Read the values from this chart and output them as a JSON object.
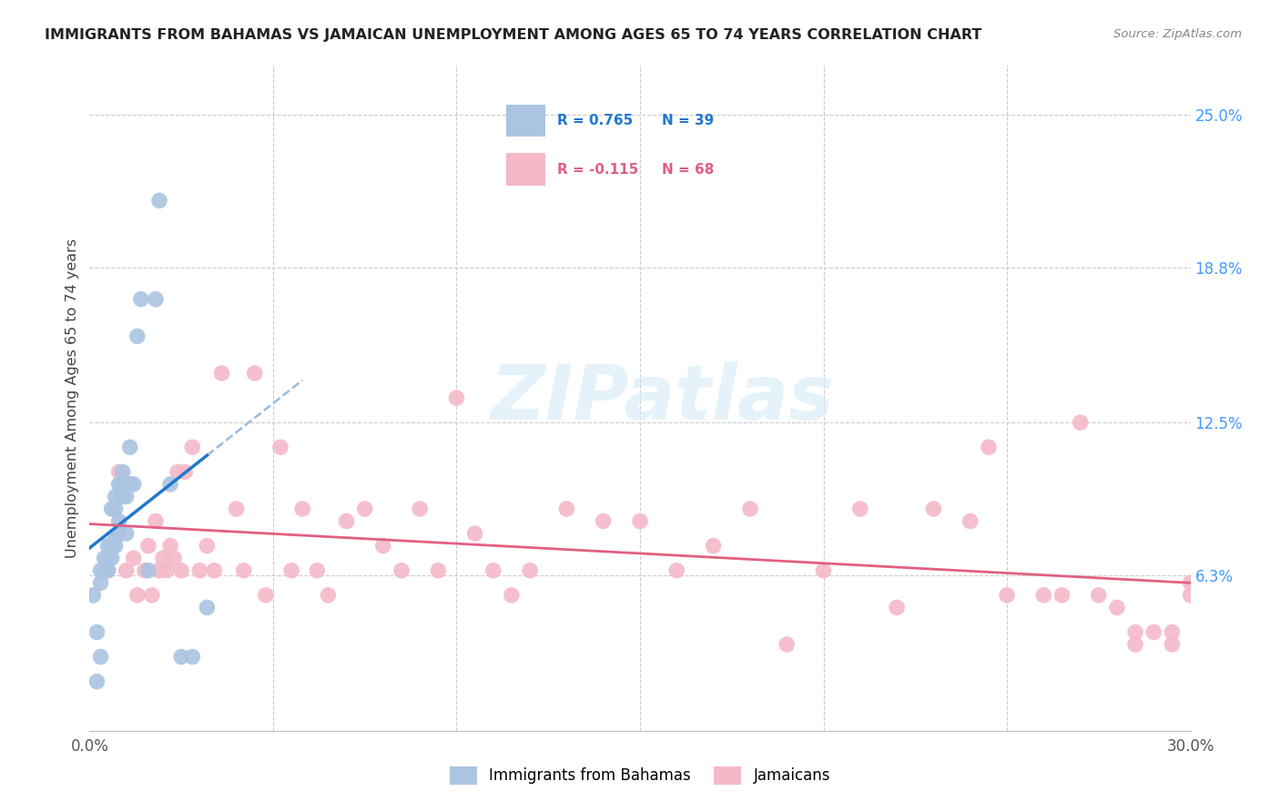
{
  "title": "IMMIGRANTS FROM BAHAMAS VS JAMAICAN UNEMPLOYMENT AMONG AGES 65 TO 74 YEARS CORRELATION CHART",
  "source": "Source: ZipAtlas.com",
  "ylabel": "Unemployment Among Ages 65 to 74 years",
  "xlim": [
    0.0,
    0.3
  ],
  "ylim": [
    0.0,
    0.27
  ],
  "x_tick_positions": [
    0.0,
    0.05,
    0.1,
    0.15,
    0.2,
    0.25,
    0.3
  ],
  "x_tick_labels": [
    "0.0%",
    "",
    "",
    "",
    "",
    "",
    "30.0%"
  ],
  "y_tick_values_right": [
    0.25,
    0.188,
    0.125,
    0.063
  ],
  "y_tick_labels_right": [
    "25.0%",
    "18.8%",
    "12.5%",
    "6.3%"
  ],
  "legend_r1": "R = 0.765",
  "legend_n1": "N = 39",
  "legend_r2": "R = -0.115",
  "legend_n2": "N = 68",
  "watermark": "ZIPatlas",
  "bahamas_color": "#aac4e2",
  "jamaican_color": "#f5b8c8",
  "bahamas_line_color": "#2277cc",
  "jamaican_line_color": "#e06080",
  "bahamas_dash_color": "#99bbdd",
  "grid_color": "#cccccc",
  "right_axis_color": "#4499ff",
  "bahamas_x": [
    0.001,
    0.002,
    0.002,
    0.003,
    0.003,
    0.003,
    0.004,
    0.004,
    0.005,
    0.005,
    0.005,
    0.006,
    0.006,
    0.006,
    0.007,
    0.007,
    0.007,
    0.007,
    0.008,
    0.008,
    0.008,
    0.009,
    0.009,
    0.009,
    0.01,
    0.01,
    0.01,
    0.011,
    0.011,
    0.012,
    0.013,
    0.014,
    0.016,
    0.018,
    0.019,
    0.022,
    0.025,
    0.028,
    0.032
  ],
  "bahamas_y": [
    0.055,
    0.04,
    0.02,
    0.06,
    0.065,
    0.03,
    0.065,
    0.07,
    0.065,
    0.07,
    0.075,
    0.07,
    0.075,
    0.09,
    0.075,
    0.078,
    0.09,
    0.095,
    0.08,
    0.085,
    0.1,
    0.095,
    0.1,
    0.105,
    0.08,
    0.095,
    0.1,
    0.1,
    0.115,
    0.1,
    0.16,
    0.175,
    0.065,
    0.175,
    0.215,
    0.1,
    0.03,
    0.03,
    0.05
  ],
  "jamaican_x": [
    0.005,
    0.008,
    0.01,
    0.012,
    0.013,
    0.015,
    0.016,
    0.017,
    0.018,
    0.019,
    0.02,
    0.021,
    0.022,
    0.023,
    0.024,
    0.025,
    0.026,
    0.028,
    0.03,
    0.032,
    0.034,
    0.036,
    0.04,
    0.042,
    0.045,
    0.048,
    0.052,
    0.055,
    0.058,
    0.062,
    0.065,
    0.07,
    0.075,
    0.08,
    0.085,
    0.09,
    0.095,
    0.1,
    0.105,
    0.11,
    0.115,
    0.12,
    0.13,
    0.14,
    0.15,
    0.16,
    0.17,
    0.18,
    0.19,
    0.2,
    0.21,
    0.22,
    0.23,
    0.24,
    0.245,
    0.25,
    0.26,
    0.265,
    0.27,
    0.275,
    0.28,
    0.285,
    0.29,
    0.295,
    0.3,
    0.3,
    0.295,
    0.285
  ],
  "jamaican_y": [
    0.065,
    0.105,
    0.065,
    0.07,
    0.055,
    0.065,
    0.075,
    0.055,
    0.085,
    0.065,
    0.07,
    0.065,
    0.075,
    0.07,
    0.105,
    0.065,
    0.105,
    0.115,
    0.065,
    0.075,
    0.065,
    0.145,
    0.09,
    0.065,
    0.145,
    0.055,
    0.115,
    0.065,
    0.09,
    0.065,
    0.055,
    0.085,
    0.09,
    0.075,
    0.065,
    0.09,
    0.065,
    0.135,
    0.08,
    0.065,
    0.055,
    0.065,
    0.09,
    0.085,
    0.085,
    0.065,
    0.075,
    0.09,
    0.035,
    0.065,
    0.09,
    0.05,
    0.09,
    0.085,
    0.115,
    0.055,
    0.055,
    0.055,
    0.125,
    0.055,
    0.05,
    0.035,
    0.04,
    0.04,
    0.06,
    0.055,
    0.035,
    0.04
  ]
}
